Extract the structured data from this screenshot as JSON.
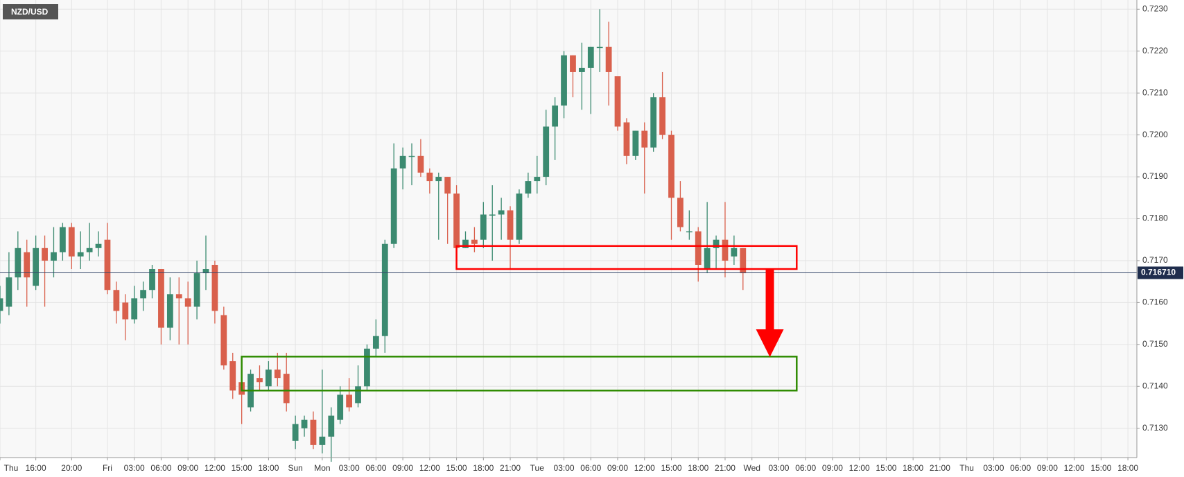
{
  "chart_data": {
    "type": "candlestick",
    "symbol": "NZD/USD",
    "up_color": "#3b8a70",
    "down_color": "#d9604c",
    "open": [
      0.7158,
      0.7159,
      0.7166,
      0.7172,
      0.7164,
      0.7173,
      0.717,
      0.7172,
      0.7178,
      0.7171,
      0.7172,
      0.7173,
      0.7175,
      0.7163,
      0.716,
      0.7156,
      0.7161,
      0.7163,
      0.7168,
      0.7154,
      0.7162,
      0.7161,
      0.7159,
      0.7167,
      0.7169,
      0.7157,
      0.7146,
      0.7141,
      0.7135,
      0.7142,
      0.714,
      0.7144,
      0.7143,
      0.7127,
      0.713,
      0.7132,
      0.7126,
      0.7128,
      0.7132,
      0.7138,
      0.7136,
      0.714,
      0.7149,
      0.7152,
      0.7174,
      0.7192,
      0.7195,
      0.7195,
      0.7191,
      0.7189,
      0.719,
      0.7186,
      0.7173,
      0.7175,
      0.7175,
      0.7181,
      0.7181,
      0.7182,
      0.7175,
      0.7186,
      0.7189,
      0.719,
      0.7202,
      0.7207,
      0.7219,
      0.7215,
      0.7216,
      0.7221,
      0.7221,
      0.7214,
      0.7203,
      0.7195,
      0.7201,
      0.7197,
      0.7209,
      0.72,
      0.7185,
      0.7177,
      0.7177,
      0.7168,
      0.7173,
      0.7175,
      0.7171,
      0.7173
    ],
    "high": [
      0.7164,
      0.7172,
      0.7177,
      0.7175,
      0.7176,
      0.7176,
      0.7178,
      0.7179,
      0.7179,
      0.7177,
      0.7179,
      0.7177,
      0.7179,
      0.7165,
      0.7162,
      0.7164,
      0.7165,
      0.7169,
      0.7168,
      0.7166,
      0.7166,
      0.7165,
      0.717,
      0.7176,
      0.717,
      0.7159,
      0.7148,
      0.7143,
      0.7144,
      0.7145,
      0.7146,
      0.7148,
      0.7148,
      0.7133,
      0.7133,
      0.7134,
      0.7144,
      0.7135,
      0.714,
      0.7142,
      0.7145,
      0.715,
      0.7156,
      0.7175,
      0.7198,
      0.7197,
      0.7198,
      0.7199,
      0.7192,
      0.7191,
      0.719,
      0.7188,
      0.7177,
      0.7178,
      0.7184,
      0.7188,
      0.7185,
      0.7183,
      0.7187,
      0.7191,
      0.7195,
      0.7206,
      0.7209,
      0.722,
      0.7219,
      0.7222,
      0.7221,
      0.723,
      0.7227,
      0.7214,
      0.7204,
      0.7201,
      0.7203,
      0.721,
      0.7215,
      0.7201,
      0.7189,
      0.7182,
      0.7178,
      0.7184,
      0.7176,
      0.7184,
      0.7176,
      0.7173
    ],
    "low": [
      0.7155,
      0.7157,
      0.7163,
      0.7159,
      0.7163,
      0.7159,
      0.7166,
      0.717,
      0.7168,
      0.7168,
      0.717,
      0.7171,
      0.7162,
      0.7155,
      0.7151,
      0.7155,
      0.7158,
      0.7161,
      0.715,
      0.7151,
      0.715,
      0.715,
      0.7156,
      0.7163,
      0.7155,
      0.7144,
      0.7137,
      0.7131,
      0.7134,
      0.7139,
      0.7139,
      0.714,
      0.7134,
      0.7125,
      0.7128,
      0.7125,
      0.7124,
      0.7122,
      0.7131,
      0.7134,
      0.7135,
      0.7139,
      0.7147,
      0.7148,
      0.7173,
      0.7187,
      0.7188,
      0.719,
      0.7186,
      0.7175,
      0.7174,
      0.7172,
      0.7173,
      0.7172,
      0.7173,
      0.717,
      0.7175,
      0.7168,
      0.7174,
      0.7185,
      0.7186,
      0.7188,
      0.7194,
      0.7204,
      0.7209,
      0.7206,
      0.7205,
      0.7215,
      0.7207,
      0.7201,
      0.7193,
      0.7194,
      0.7186,
      0.7196,
      0.7199,
      0.7175,
      0.7177,
      0.7175,
      0.7165,
      0.7167,
      0.7168,
      0.7166,
      0.7169,
      0.7163
    ],
    "close": [
      0.7161,
      0.7166,
      0.7173,
      0.7166,
      0.7173,
      0.717,
      0.7172,
      0.7178,
      0.7171,
      0.7172,
      0.7173,
      0.7174,
      0.7163,
      0.7158,
      0.7156,
      0.7161,
      0.7163,
      0.7168,
      0.7154,
      0.7162,
      0.7161,
      0.7159,
      0.7167,
      0.7168,
      0.7158,
      0.7145,
      0.7139,
      0.7138,
      0.7143,
      0.7141,
      0.7144,
      0.7142,
      0.7136,
      0.7131,
      0.7132,
      0.7126,
      0.7128,
      0.7133,
      0.7138,
      0.7135,
      0.714,
      0.7149,
      0.7152,
      0.7174,
      0.7192,
      0.7195,
      0.7195,
      0.7191,
      0.7189,
      0.719,
      0.7186,
      0.7173,
      0.7175,
      0.7174,
      0.7181,
      0.7181,
      0.7182,
      0.7175,
      0.7186,
      0.7189,
      0.719,
      0.7202,
      0.7207,
      0.7219,
      0.7215,
      0.7216,
      0.7221,
      0.7221,
      0.7215,
      0.7202,
      0.7195,
      0.7201,
      0.7197,
      0.7209,
      0.72,
      0.7185,
      0.7178,
      0.7177,
      0.7169,
      0.7173,
      0.7175,
      0.717,
      0.7173,
      0.7167
    ],
    "xlim": [
      0,
      127
    ],
    "xticks": [
      {
        "value": 0,
        "label": "Thu"
      },
      {
        "value": 4,
        "label": "16:00"
      },
      {
        "value": 8,
        "label": "20:00"
      },
      {
        "value": 12,
        "label": "Fri"
      },
      {
        "value": 15,
        "label": "03:00"
      },
      {
        "value": 18,
        "label": "06:00"
      },
      {
        "value": 21,
        "label": "09:00"
      },
      {
        "value": 24,
        "label": "12:00"
      },
      {
        "value": 27,
        "label": "15:00"
      },
      {
        "value": 30,
        "label": "18:00"
      },
      {
        "value": 33,
        "label": "Sun"
      },
      {
        "value": 36,
        "label": "Mon"
      },
      {
        "value": 39,
        "label": "03:00"
      },
      {
        "value": 42,
        "label": "06:00"
      },
      {
        "value": 45,
        "label": "09:00"
      },
      {
        "value": 48,
        "label": "12:00"
      },
      {
        "value": 51,
        "label": "15:00"
      },
      {
        "value": 54,
        "label": "18:00"
      },
      {
        "value": 57,
        "label": "21:00"
      },
      {
        "value": 60,
        "label": "Tue"
      },
      {
        "value": 63,
        "label": "03:00"
      },
      {
        "value": 66,
        "label": "06:00"
      },
      {
        "value": 69,
        "label": "09:00"
      },
      {
        "value": 72,
        "label": "12:00"
      },
      {
        "value": 75,
        "label": "15:00"
      },
      {
        "value": 78,
        "label": "18:00"
      },
      {
        "value": 81,
        "label": "21:00"
      },
      {
        "value": 84,
        "label": "Wed"
      },
      {
        "value": 87,
        "label": "03:00"
      },
      {
        "value": 90,
        "label": "06:00"
      },
      {
        "value": 93,
        "label": "09:00"
      },
      {
        "value": 96,
        "label": "12:00"
      },
      {
        "value": 99,
        "label": "15:00"
      },
      {
        "value": 102,
        "label": "18:00"
      },
      {
        "value": 105,
        "label": "21:00"
      },
      {
        "value": 108,
        "label": "Thu"
      },
      {
        "value": 111,
        "label": "03:00"
      },
      {
        "value": 114,
        "label": "06:00"
      },
      {
        "value": 117,
        "label": "09:00"
      },
      {
        "value": 120,
        "label": "12:00"
      },
      {
        "value": 123,
        "label": "15:00"
      },
      {
        "value": 126,
        "label": "18:00"
      }
    ],
    "ylim": [
      0.7123,
      0.72322
    ],
    "yticks": [
      {
        "value": 0.713,
        "label": "0.7130"
      },
      {
        "value": 0.714,
        "label": "0.7140"
      },
      {
        "value": 0.715,
        "label": "0.7150"
      },
      {
        "value": 0.716,
        "label": "0.7160"
      },
      {
        "value": 0.717,
        "label": "0.7170"
      },
      {
        "value": 0.718,
        "label": "0.7180"
      },
      {
        "value": 0.719,
        "label": "0.7190"
      },
      {
        "value": 0.72,
        "label": "0.7200"
      },
      {
        "value": 0.721,
        "label": "0.7210"
      },
      {
        "value": 0.722,
        "label": "0.7220"
      },
      {
        "value": 0.723,
        "label": "0.7230"
      }
    ],
    "grid": true,
    "last_price": 0.71671,
    "last_price_label": "0.716710",
    "annotations": [
      {
        "type": "rect",
        "x": [
          51,
          89
        ],
        "y": [
          0.7168,
          0.71735
        ],
        "color": "#ff0000"
      },
      {
        "type": "rect",
        "x": [
          27,
          89
        ],
        "y": [
          0.7139,
          0.71471
        ],
        "color": "#2e8b00"
      },
      {
        "type": "arrow",
        "x": 86,
        "y": [
          0.7168,
          0.7147
        ],
        "color": "#ff0000"
      }
    ]
  }
}
